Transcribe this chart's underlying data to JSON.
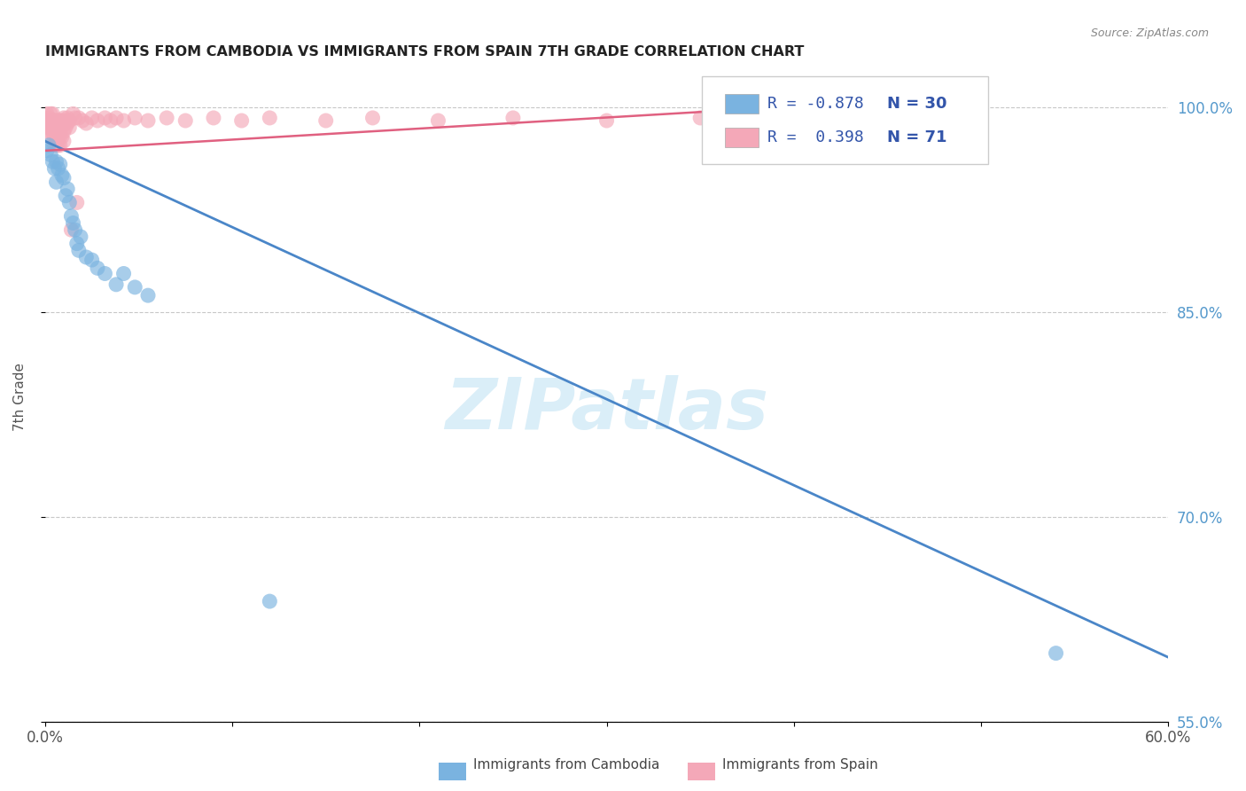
{
  "title": "IMMIGRANTS FROM CAMBODIA VS IMMIGRANTS FROM SPAIN 7TH GRADE CORRELATION CHART",
  "source": "Source: ZipAtlas.com",
  "ylabel": "7th Grade",
  "xlim": [
    0.0,
    0.6
  ],
  "ylim": [
    0.575,
    1.025
  ],
  "yticks": [
    1.0,
    0.85,
    0.7,
    0.55
  ],
  "ytick_labels": [
    "100.0%",
    "85.0%",
    "70.0%",
    "55.0%"
  ],
  "xticks": [
    0.0,
    0.1,
    0.2,
    0.3,
    0.4,
    0.5,
    0.6
  ],
  "xtick_labels": [
    "0.0%",
    "",
    "",
    "",
    "",
    "",
    "60.0%"
  ],
  "blue_color": "#7ab3e0",
  "pink_color": "#f4a8b8",
  "blue_line_color": "#4a86c8",
  "pink_line_color": "#e06080",
  "watermark_text": "ZIPatlas",
  "watermark_color": "#daeef8",
  "blue_scatter_x": [
    0.001,
    0.002,
    0.003,
    0.004,
    0.005,
    0.006,
    0.006,
    0.007,
    0.008,
    0.009,
    0.01,
    0.011,
    0.012,
    0.013,
    0.014,
    0.015,
    0.016,
    0.017,
    0.018,
    0.019,
    0.022,
    0.025,
    0.028,
    0.032,
    0.038,
    0.042,
    0.048,
    0.055,
    0.12,
    0.54
  ],
  "blue_scatter_y": [
    0.968,
    0.972,
    0.965,
    0.96,
    0.955,
    0.96,
    0.945,
    0.955,
    0.958,
    0.95,
    0.948,
    0.935,
    0.94,
    0.93,
    0.92,
    0.915,
    0.91,
    0.9,
    0.895,
    0.905,
    0.89,
    0.888,
    0.882,
    0.878,
    0.87,
    0.878,
    0.868,
    0.862,
    0.638,
    0.6
  ],
  "pink_scatter_x": [
    0.001,
    0.001,
    0.001,
    0.002,
    0.002,
    0.002,
    0.003,
    0.003,
    0.003,
    0.003,
    0.004,
    0.004,
    0.004,
    0.005,
    0.005,
    0.005,
    0.005,
    0.006,
    0.006,
    0.006,
    0.006,
    0.007,
    0.007,
    0.007,
    0.007,
    0.008,
    0.008,
    0.008,
    0.008,
    0.009,
    0.009,
    0.009,
    0.01,
    0.01,
    0.01,
    0.01,
    0.011,
    0.011,
    0.012,
    0.012,
    0.013,
    0.013,
    0.014,
    0.015,
    0.016,
    0.017,
    0.018,
    0.02,
    0.022,
    0.025,
    0.028,
    0.032,
    0.035,
    0.038,
    0.042,
    0.048,
    0.055,
    0.065,
    0.075,
    0.09,
    0.105,
    0.12,
    0.15,
    0.175,
    0.21,
    0.25,
    0.3,
    0.35,
    0.4,
    0.45,
    0.5
  ],
  "pink_scatter_y": [
    0.99,
    0.995,
    0.985,
    0.992,
    0.988,
    0.982,
    0.99,
    0.985,
    0.978,
    0.995,
    0.988,
    0.982,
    0.995,
    0.99,
    0.985,
    0.978,
    0.972,
    0.99,
    0.985,
    0.978,
    0.972,
    0.99,
    0.985,
    0.978,
    0.972,
    0.99,
    0.985,
    0.978,
    0.972,
    0.99,
    0.985,
    0.978,
    0.992,
    0.988,
    0.982,
    0.975,
    0.99,
    0.985,
    0.992,
    0.988,
    0.99,
    0.985,
    0.91,
    0.995,
    0.992,
    0.93,
    0.992,
    0.99,
    0.988,
    0.992,
    0.99,
    0.992,
    0.99,
    0.992,
    0.99,
    0.992,
    0.99,
    0.992,
    0.99,
    0.992,
    0.99,
    0.992,
    0.99,
    0.992,
    0.99,
    0.992,
    0.99,
    0.992,
    0.99,
    0.992,
    0.99
  ],
  "blue_trend_x": [
    0.0,
    0.6
  ],
  "blue_trend_y": [
    0.975,
    0.597
  ],
  "pink_trend_x": [
    0.0,
    0.42
  ],
  "pink_trend_y": [
    0.968,
    1.002
  ],
  "bg_color": "#ffffff",
  "grid_color": "#c8c8c8",
  "title_color": "#222222",
  "axis_label_color": "#555555",
  "right_tick_color": "#5599cc",
  "legend_items": [
    {
      "color": "#7ab3e0",
      "r_text": "R = -0.878",
      "n_text": "N = 30"
    },
    {
      "color": "#f4a8b8",
      "r_text": "R =  0.398",
      "n_text": "N = 71"
    }
  ],
  "bottom_legend": [
    {
      "color": "#7ab3e0",
      "label": "Immigrants from Cambodia"
    },
    {
      "color": "#f4a8b8",
      "label": "Immigrants from Spain"
    }
  ]
}
